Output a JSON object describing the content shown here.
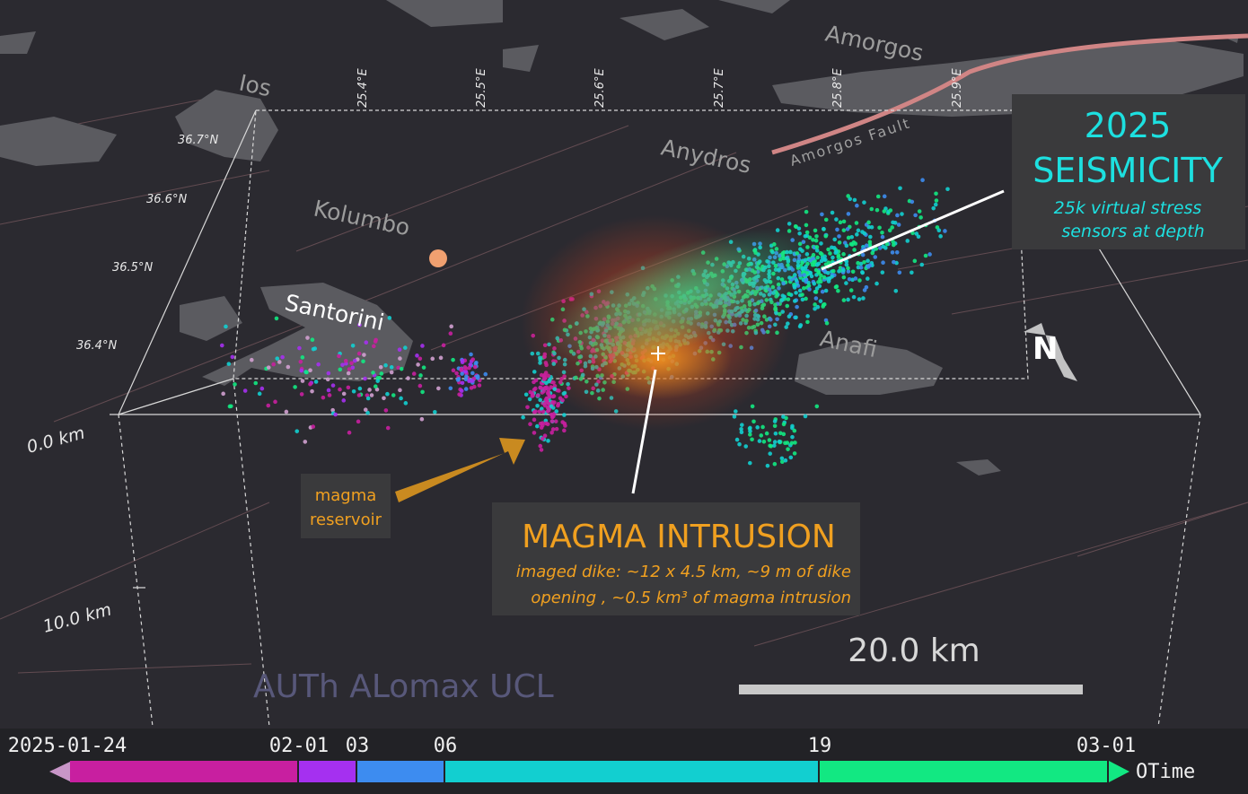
{
  "map": {
    "places": [
      "Ios",
      "Amorgos",
      "Anydros",
      "Kolumbo",
      "Santorini",
      "Anafi"
    ],
    "fault": "Amorgos Fault",
    "latitudes": [
      "36.7°N",
      "36.6°N",
      "36.5°N",
      "36.4°N"
    ],
    "longitudes": [
      "25.4°E",
      "25.5°E",
      "25.6°E",
      "25.7°E",
      "25.8°E",
      "25.9°E"
    ],
    "depths": [
      "0.0 km",
      "10.0 km"
    ],
    "scale": "20.0 km",
    "credit": "AUTh ALomax UCL"
  },
  "seismicity_box": {
    "year": "2025",
    "title": "SEISMICITY",
    "lines": [
      "25k virtual stress",
      "sensors at depth"
    ]
  },
  "intrusion_box": {
    "title": "MAGMA INTRUSION",
    "lines": [
      "imaged dike: ~12 x 4.5 km, ~9 m of  dike",
      "opening , ~0.5 km³ of magma intrusion"
    ]
  },
  "reservoir_box": {
    "lines": [
      "magma",
      "reservoir"
    ]
  },
  "colorbar": {
    "labels": [
      "2025-01-24",
      "02-01",
      "03",
      "06",
      "19",
      "03-01"
    ],
    "colors": [
      "#c81fa0",
      "#a530f0",
      "#3d8cf0",
      "#12cfd0",
      "#12e882"
    ],
    "axis": "OTime"
  }
}
